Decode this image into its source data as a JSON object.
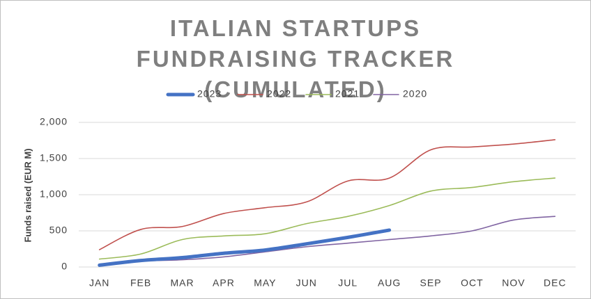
{
  "chart_data": {
    "type": "line",
    "title": "ITALIAN STARTUPS FUNDRAISING TRACKER (CUMULATED)",
    "y_label": "Funds raised (EUR M)",
    "categories": [
      "JAN",
      "FEB",
      "MAR",
      "APR",
      "MAY",
      "JUN",
      "JUL",
      "AUG",
      "SEP",
      "OCT",
      "NOV",
      "DEC"
    ],
    "series": [
      {
        "name": "2023",
        "color": "#4472c4",
        "values": [
          25,
          90,
          130,
          190,
          235,
          320,
          410,
          510,
          null,
          null,
          null,
          null
        ]
      },
      {
        "name": "2022",
        "color": "#c0504d",
        "values": [
          240,
          520,
          560,
          740,
          820,
          900,
          1190,
          1230,
          1620,
          1660,
          1700,
          1760
        ]
      },
      {
        "name": "2021",
        "color": "#9bbb59",
        "values": [
          110,
          180,
          380,
          430,
          460,
          600,
          700,
          850,
          1050,
          1100,
          1180,
          1230
        ]
      },
      {
        "name": "2020",
        "color": "#8064a2",
        "values": [
          20,
          80,
          100,
          140,
          210,
          280,
          330,
          380,
          430,
          500,
          650,
          700
        ]
      }
    ],
    "ylim": [
      0,
      2000
    ],
    "yticks": [
      0,
      500,
      {
        "value": 1000,
        "label": "1,000"
      },
      {
        "value": 1500,
        "label": "1,500"
      },
      {
        "value": 2000,
        "label": "2,000"
      }
    ],
    "grid": true,
    "legend": "top"
  }
}
